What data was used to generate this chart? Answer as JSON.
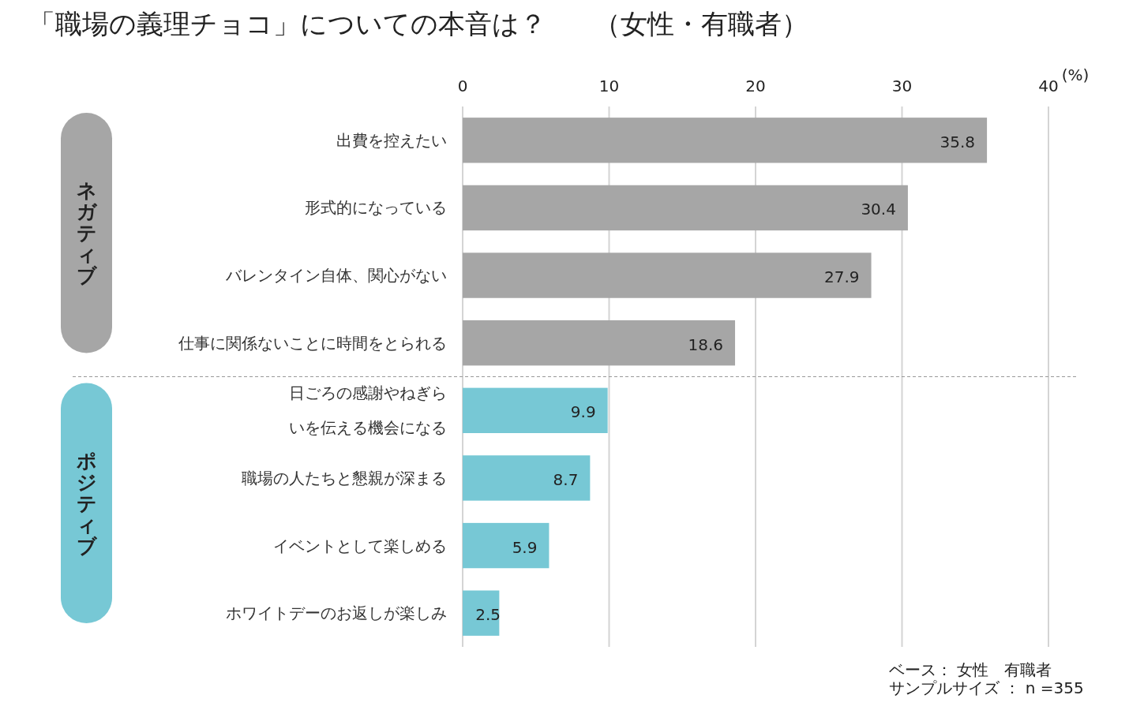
{
  "chart_data": {
    "type": "bar",
    "orientation": "horizontal",
    "title": "「職場の義理チョコ」についての本音は？",
    "subtitle": "（女性・有職者）",
    "xlabel": "(%)",
    "categories": [
      "出費を控えたい",
      "形式的になっている",
      "バレンタイン自体、関心がない",
      "仕事に関係ないことに時間をとられる",
      "日ごろの感謝やねぎらいを伝える機会になる",
      "職場の人たちと懇親が深まる",
      "イベントとして楽しめる",
      "ホワイトデーのお返しが楽しみ"
    ],
    "values": [
      35.8,
      30.4,
      27.9,
      18.6,
      9.9,
      8.7,
      5.9,
      2.5
    ],
    "colors": [
      "#a6a6a6",
      "#a6a6a6",
      "#a6a6a6",
      "#a6a6a6",
      "#77c8d5",
      "#77c8d5",
      "#77c8d5",
      "#77c8d5"
    ],
    "xlim": [
      0,
      40
    ],
    "xticks": [
      0,
      10,
      20,
      30,
      40
    ],
    "grid": "x",
    "data_labels": true,
    "annotations": [
      "ネガティブ",
      "ポジティブ",
      "ベース： 女性　有職者",
      "サンプルサイズ ： n =355"
    ]
  }
}
